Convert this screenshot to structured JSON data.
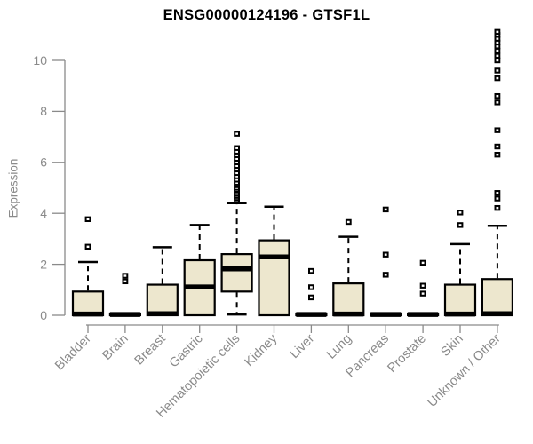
{
  "chart": {
    "title": "ENSG00000124196 - GTSF1L",
    "ylabel": "Expression"
  },
  "chart_data": {
    "type": "boxplot",
    "title": "ENSG00000124196 - GTSF1L",
    "xlabel": "",
    "ylabel": "Expression",
    "ylim": [
      0,
      11.2
    ],
    "yticks": [
      0,
      2,
      4,
      6,
      8,
      10
    ],
    "grid": false,
    "legend": false,
    "categories": [
      "Bladder",
      "Brain",
      "Breast",
      "Gastric",
      "Hematopoietic cells",
      "Kidney",
      "Liver",
      "Lung",
      "Pancreas",
      "Prostate",
      "Skin",
      "Unknown / Other"
    ],
    "boxes": [
      {
        "label": "Bladder",
        "whisker_low": 0,
        "q1": 0,
        "median": 0.05,
        "q3": 0.93,
        "whisker_high": 2.09,
        "outliers": [
          2.69,
          3.77
        ]
      },
      {
        "label": "Brain",
        "whisker_low": 0,
        "q1": 0,
        "median": 0.03,
        "q3": 0.07,
        "whisker_high": 0.07,
        "outliers": [
          1.33,
          1.55
        ]
      },
      {
        "label": "Breast",
        "whisker_low": 0,
        "q1": 0,
        "median": 0.06,
        "q3": 1.2,
        "whisker_high": 2.67,
        "outliers": []
      },
      {
        "label": "Gastric",
        "whisker_low": 0,
        "q1": 0,
        "median": 1.11,
        "q3": 2.16,
        "whisker_high": 3.54,
        "outliers": []
      },
      {
        "label": "Hematopoietic cells",
        "whisker_low": 0.03,
        "q1": 0.93,
        "median": 1.82,
        "q3": 2.4,
        "whisker_high": 4.4,
        "outliers": [
          4.52,
          4.6,
          4.68,
          4.76,
          4.84,
          4.92,
          5.0,
          5.1,
          5.2,
          5.32,
          5.45,
          5.58,
          5.72,
          5.86,
          6.0,
          6.14,
          6.28,
          6.42,
          6.56,
          7.12
        ]
      },
      {
        "label": "Kidney",
        "whisker_low": 0,
        "q1": 0,
        "median": 2.29,
        "q3": 2.94,
        "whisker_high": 4.26,
        "outliers": []
      },
      {
        "label": "Liver",
        "whisker_low": 0,
        "q1": 0,
        "median": 0.03,
        "q3": 0.07,
        "whisker_high": 0.07,
        "outliers": [
          0.7,
          1.1,
          1.74
        ]
      },
      {
        "label": "Lung",
        "whisker_low": 0,
        "q1": 0,
        "median": 0.05,
        "q3": 1.25,
        "whisker_high": 3.08,
        "outliers": [
          3.66
        ]
      },
      {
        "label": "Pancreas",
        "whisker_low": 0,
        "q1": 0,
        "median": 0.03,
        "q3": 0.07,
        "whisker_high": 0.07,
        "outliers": [
          1.59,
          2.38,
          4.15
        ]
      },
      {
        "label": "Prostate",
        "whisker_low": 0,
        "q1": 0,
        "median": 0.03,
        "q3": 0.07,
        "whisker_high": 0.07,
        "outliers": [
          0.85,
          1.16,
          2.06
        ]
      },
      {
        "label": "Skin",
        "whisker_low": 0,
        "q1": 0,
        "median": 0.05,
        "q3": 1.2,
        "whisker_high": 2.79,
        "outliers": [
          3.54,
          4.03
        ]
      },
      {
        "label": "Unknown / Other",
        "whisker_low": 0,
        "q1": 0,
        "median": 0.06,
        "q3": 1.42,
        "whisker_high": 3.51,
        "outliers": [
          4.21,
          4.58,
          4.8,
          6.3,
          6.62,
          7.26,
          8.35,
          8.6,
          9.3,
          9.6,
          10.0,
          10.18,
          10.38,
          10.55,
          10.7,
          10.85,
          11.0,
          11.12
        ]
      }
    ],
    "colors": {
      "box_fill": "#EDE7CE",
      "box_line": "#000000",
      "axis": "#8a8a8a",
      "title": "#000000"
    }
  }
}
